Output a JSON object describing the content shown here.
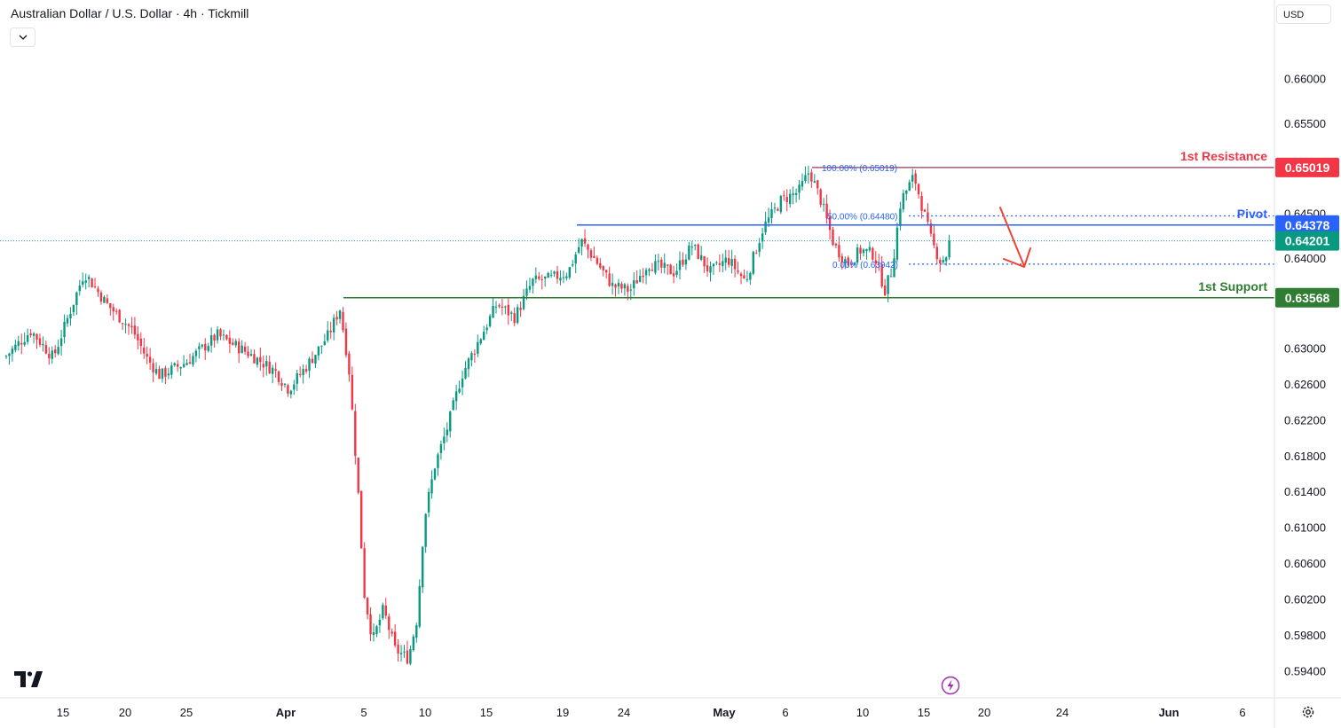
{
  "header": {
    "title": "Australian Dollar / U.S. Dollar · 4h · Tickmill",
    "currency": "USD"
  },
  "colors": {
    "up": "#089981",
    "down": "#f23645",
    "resistance": "#f23645",
    "pivot": "#2962ff",
    "support": "#43a047",
    "fib": "#2962ff",
    "arrow": "#f44336"
  },
  "icons": {
    "collapse": "chevron-down-icon",
    "logo": "tradingview-logo",
    "bolt": "lightning-icon",
    "settings": "gear-icon"
  },
  "chart_data": {
    "type": "candlestick",
    "symbol": "AUDUSD",
    "interval": "4h",
    "ylim": [
      0.5918,
      0.6644
    ],
    "yaxis_ticks": [
      "0.66000",
      "0.65500",
      "0.64500",
      "0.64000",
      "0.63000",
      "0.62600",
      "0.62200",
      "0.61800",
      "0.61400",
      "0.61000",
      "0.60600",
      "0.60200",
      "0.59800",
      "0.59400"
    ],
    "xaxis_ticks": [
      "15",
      "20",
      "25",
      "Apr",
      "5",
      "10",
      "15",
      "19",
      "24",
      "May",
      "6",
      "10",
      "15",
      "20",
      "24",
      "Jun",
      "6"
    ],
    "last_price": 0.64201,
    "levels": [
      {
        "name": "1st Resistance",
        "price": 0.65019,
        "label": "0.65019"
      },
      {
        "name": "Pivot",
        "price": 0.64378,
        "label": "0.64378"
      },
      {
        "name": "1st Support",
        "price": 0.63568,
        "label": "0.63568"
      }
    ],
    "current_label": "0.64201",
    "fibonacci": [
      {
        "label": "100.00% (0.65019)",
        "price": 0.65019
      },
      {
        "label": "50.00% (0.64480)",
        "price": 0.6448
      },
      {
        "label": "0.00% (0.63942)",
        "price": 0.63942
      }
    ],
    "projection": "down",
    "price_path": [
      [
        0,
        0.6285
      ],
      [
        35,
        0.632
      ],
      [
        60,
        0.629
      ],
      [
        95,
        0.6385
      ],
      [
        120,
        0.635
      ],
      [
        150,
        0.632
      ],
      [
        165,
        0.629
      ],
      [
        180,
        0.627
      ],
      [
        210,
        0.6285
      ],
      [
        245,
        0.6315
      ],
      [
        280,
        0.6295
      ],
      [
        310,
        0.6275
      ],
      [
        325,
        0.6255
      ],
      [
        345,
        0.628
      ],
      [
        370,
        0.6315
      ],
      [
        383,
        0.6345
      ],
      [
        393,
        0.628
      ],
      [
        400,
        0.619
      ],
      [
        405,
        0.612
      ],
      [
        410,
        0.603
      ],
      [
        420,
        0.5975
      ],
      [
        432,
        0.601
      ],
      [
        445,
        0.5965
      ],
      [
        460,
        0.5955
      ],
      [
        470,
        0.6
      ],
      [
        478,
        0.611
      ],
      [
        490,
        0.617
      ],
      [
        505,
        0.6215
      ],
      [
        520,
        0.627
      ],
      [
        540,
        0.631
      ],
      [
        560,
        0.635
      ],
      [
        580,
        0.6335
      ],
      [
        600,
        0.6375
      ],
      [
        620,
        0.6378
      ],
      [
        640,
        0.6385
      ],
      [
        655,
        0.642
      ],
      [
        670,
        0.64
      ],
      [
        690,
        0.637
      ],
      [
        710,
        0.6365
      ],
      [
        730,
        0.6395
      ],
      [
        760,
        0.6385
      ],
      [
        780,
        0.6415
      ],
      [
        800,
        0.6385
      ],
      [
        820,
        0.64
      ],
      [
        840,
        0.6375
      ],
      [
        860,
        0.6435
      ],
      [
        880,
        0.6465
      ],
      [
        900,
        0.6475
      ],
      [
        912,
        0.6498
      ],
      [
        925,
        0.6465
      ],
      [
        940,
        0.6415
      ],
      [
        955,
        0.6395
      ],
      [
        970,
        0.641
      ],
      [
        985,
        0.6405
      ],
      [
        997,
        0.6365
      ],
      [
        1005,
        0.6388
      ],
      [
        1015,
        0.6465
      ],
      [
        1030,
        0.6492
      ],
      [
        1040,
        0.6455
      ],
      [
        1050,
        0.6418
      ],
      [
        1060,
        0.6397
      ],
      [
        1067,
        0.6405
      ],
      [
        1072,
        0.64201
      ]
    ]
  }
}
